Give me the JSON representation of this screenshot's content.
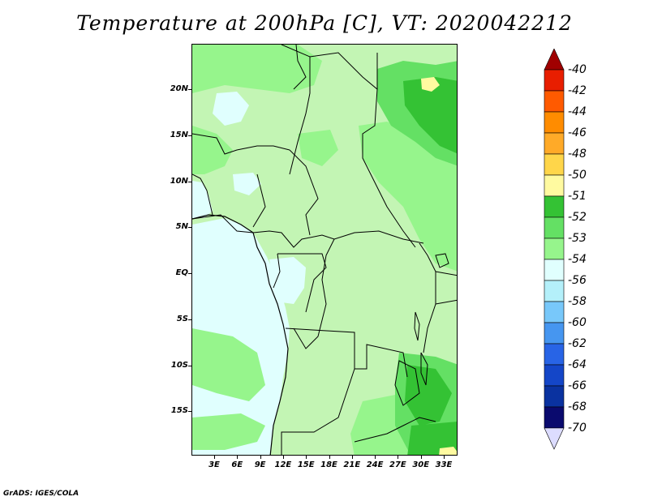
{
  "title": "Temperature at 200hPa [C], VT: 2020042212",
  "footer": "GrADS: IGES/COLA",
  "lat_labels": [
    "20N",
    "15N",
    "10N",
    "5N",
    "EQ",
    "5S",
    "10S",
    "15S"
  ],
  "lat_values": [
    20,
    15,
    10,
    5,
    0,
    -5,
    -10,
    -15
  ],
  "lon_labels": [
    "3E",
    "6E",
    "9E",
    "12E",
    "15E",
    "18E",
    "21E",
    "24E",
    "27E",
    "30E",
    "33E"
  ],
  "lon_values": [
    3,
    6,
    9,
    12,
    15,
    18,
    21,
    24,
    27,
    30,
    33
  ],
  "colorbar": {
    "labels": [
      "-40",
      "-42",
      "-44",
      "-46",
      "-48",
      "-50",
      "-51",
      "-52",
      "-53",
      "-54",
      "-56",
      "-58",
      "-60",
      "-62",
      "-64",
      "-66",
      "-68",
      "-70"
    ],
    "colors": [
      "#a00000",
      "#e81e00",
      "#ff5a00",
      "#ff8c00",
      "#ffaa28",
      "#ffd64a",
      "#fffaa0",
      "#34c234",
      "#64e064",
      "#96f58c",
      "#e0fffe",
      "#b4f0fa",
      "#78c8fa",
      "#4696f0",
      "#2864e6",
      "#1446c8",
      "#0a32a0",
      "#0a0a6e",
      "#dcdcff"
    ]
  },
  "colors": {
    "field_default": "#c3f5b4",
    "field_-52": "#34c234",
    "field_-53": "#64e064",
    "field_-54": "#96f58c",
    "field_-56": "#e0fffe",
    "field_-51": "#fffaa0"
  }
}
